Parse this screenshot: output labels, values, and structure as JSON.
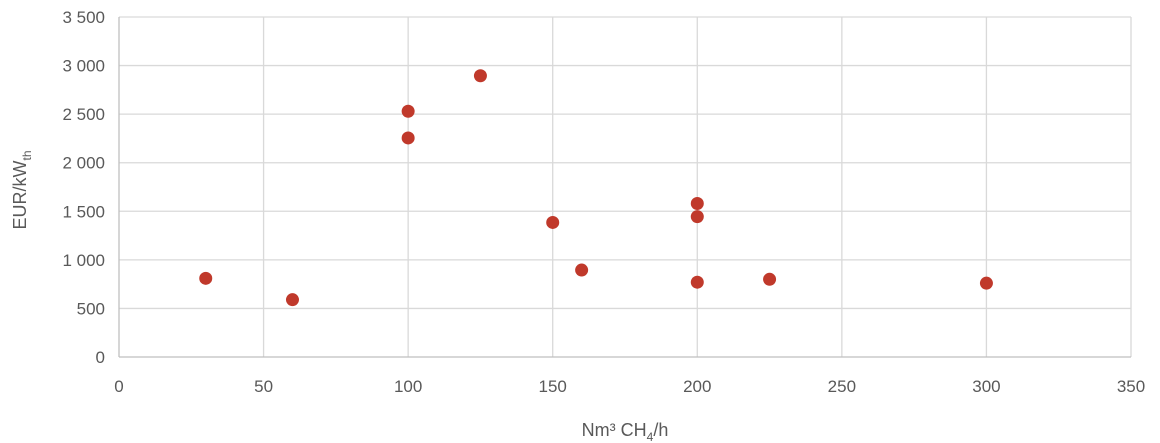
{
  "chart_data": {
    "type": "scatter",
    "title": "",
    "xlabel": {
      "main": "Nm³ CH",
      "subscript": "4",
      "suffix": "/h"
    },
    "ylabel": {
      "main": "EUR/kW",
      "subscript": "th"
    },
    "xlim": [
      0,
      350
    ],
    "ylim": [
      0,
      3500
    ],
    "x_ticks": [
      0,
      50,
      100,
      150,
      200,
      250,
      300,
      350
    ],
    "y_ticks": [
      0,
      500,
      1000,
      1500,
      2000,
      2500,
      3000,
      3500
    ],
    "x_tick_labels": [
      "0",
      "50",
      "100",
      "150",
      "200",
      "250",
      "300",
      "350"
    ],
    "y_tick_labels": [
      "0",
      "500",
      "1 000",
      "1 500",
      "2 000",
      "2 500",
      "3 000",
      "3 500"
    ],
    "grid": true,
    "legend": "none",
    "marker_color": "#C0392B",
    "gridline_color": "#D9D9D9",
    "points": [
      {
        "x": 30,
        "y": 810
      },
      {
        "x": 60,
        "y": 590
      },
      {
        "x": 100,
        "y": 2530
      },
      {
        "x": 100,
        "y": 2255
      },
      {
        "x": 125,
        "y": 2895
      },
      {
        "x": 150,
        "y": 1385
      },
      {
        "x": 160,
        "y": 895
      },
      {
        "x": 200,
        "y": 1580
      },
      {
        "x": 200,
        "y": 1445
      },
      {
        "x": 200,
        "y": 770
      },
      {
        "x": 225,
        "y": 800
      },
      {
        "x": 300,
        "y": 760
      }
    ]
  }
}
